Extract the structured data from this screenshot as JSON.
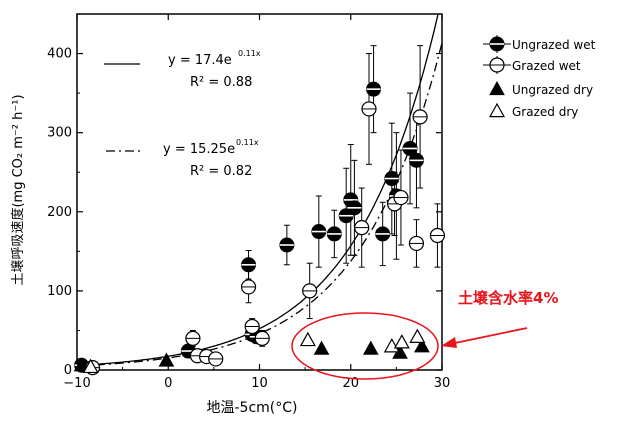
{
  "chart_data": {
    "type": "scatter",
    "xlabel": "地温-5cm(°C)",
    "ylabel": "土壌呼吸速度(mg CO₂ m⁻² h⁻¹)",
    "xlim": [
      -10,
      30
    ],
    "ylim": [
      0,
      450
    ],
    "xticks": [
      "−10",
      "0",
      "10",
      "20",
      "30"
    ],
    "yticks": [
      "0",
      "100",
      "200",
      "300",
      "400"
    ],
    "legend_position": "top-right",
    "series": [
      {
        "name": "Ungrazed wet",
        "marker": "filled-circle-cross",
        "points": [
          {
            "x": -9.5,
            "y": 6
          },
          {
            "x": 2.2,
            "y": 24
          },
          {
            "x": 8.8,
            "y": 133
          },
          {
            "x": 9.2,
            "y": 45
          },
          {
            "x": 9.7,
            "y": 42
          },
          {
            "x": 13,
            "y": 158
          },
          {
            "x": 16.5,
            "y": 175
          },
          {
            "x": 18.2,
            "y": 172
          },
          {
            "x": 19.5,
            "y": 195
          },
          {
            "x": 20,
            "y": 215
          },
          {
            "x": 20.4,
            "y": 205
          },
          {
            "x": 22.5,
            "y": 355
          },
          {
            "x": 23.5,
            "y": 172
          },
          {
            "x": 24.5,
            "y": 242
          },
          {
            "x": 25,
            "y": 220
          },
          {
            "x": 26.5,
            "y": 280
          },
          {
            "x": 27.2,
            "y": 265
          }
        ],
        "error": [
          4,
          8,
          18,
          8,
          8,
          25,
          45,
          30,
          60,
          70,
          60,
          55,
          40,
          70,
          80,
          70,
          60
        ]
      },
      {
        "name": "Grazed wet",
        "marker": "open-circle",
        "points": [
          {
            "x": -8.3,
            "y": 3
          },
          {
            "x": 2.7,
            "y": 40
          },
          {
            "x": 3.2,
            "y": 18
          },
          {
            "x": 4.2,
            "y": 17
          },
          {
            "x": 5.2,
            "y": 14
          },
          {
            "x": 8.8,
            "y": 105
          },
          {
            "x": 9.2,
            "y": 55
          },
          {
            "x": 10.3,
            "y": 40
          },
          {
            "x": 15.5,
            "y": 100
          },
          {
            "x": 21.2,
            "y": 180
          },
          {
            "x": 22,
            "y": 330
          },
          {
            "x": 24.8,
            "y": 210
          },
          {
            "x": 25.5,
            "y": 218
          },
          {
            "x": 27.2,
            "y": 160
          },
          {
            "x": 27.6,
            "y": 320
          },
          {
            "x": 29.5,
            "y": 170
          }
        ],
        "error": [
          3,
          10,
          6,
          6,
          6,
          20,
          10,
          10,
          35,
          50,
          70,
          40,
          60,
          30,
          90,
          40
        ]
      },
      {
        "name": "Ungrazed dry",
        "marker": "filled-triangle",
        "points": [
          {
            "x": -9.5,
            "y": 6
          },
          {
            "x": -0.2,
            "y": 12
          },
          {
            "x": 16.8,
            "y": 27
          },
          {
            "x": 22.2,
            "y": 27
          },
          {
            "x": 25.4,
            "y": 22
          },
          {
            "x": 27.8,
            "y": 30
          }
        ]
      },
      {
        "name": "Grazed dry",
        "marker": "open-triangle",
        "points": [
          {
            "x": -8.5,
            "y": 4
          },
          {
            "x": 15.3,
            "y": 38
          },
          {
            "x": 24.5,
            "y": 30
          },
          {
            "x": 25.6,
            "y": 35
          },
          {
            "x": 27.3,
            "y": 42
          }
        ]
      }
    ],
    "fits": [
      {
        "style": "solid",
        "a": 17.4,
        "b": 0.11,
        "equation": "y = 17.4e",
        "exponent": "0.11x",
        "r2": "R² = 0.88"
      },
      {
        "style": "dash-dot",
        "a": 15.25,
        "b": 0.11,
        "equation": "y = 15.25e",
        "exponent": "0.11x",
        "r2": "R² = 0.82"
      }
    ],
    "annotation": {
      "text": "土壌含水率4%",
      "color": "#e8141b"
    }
  }
}
